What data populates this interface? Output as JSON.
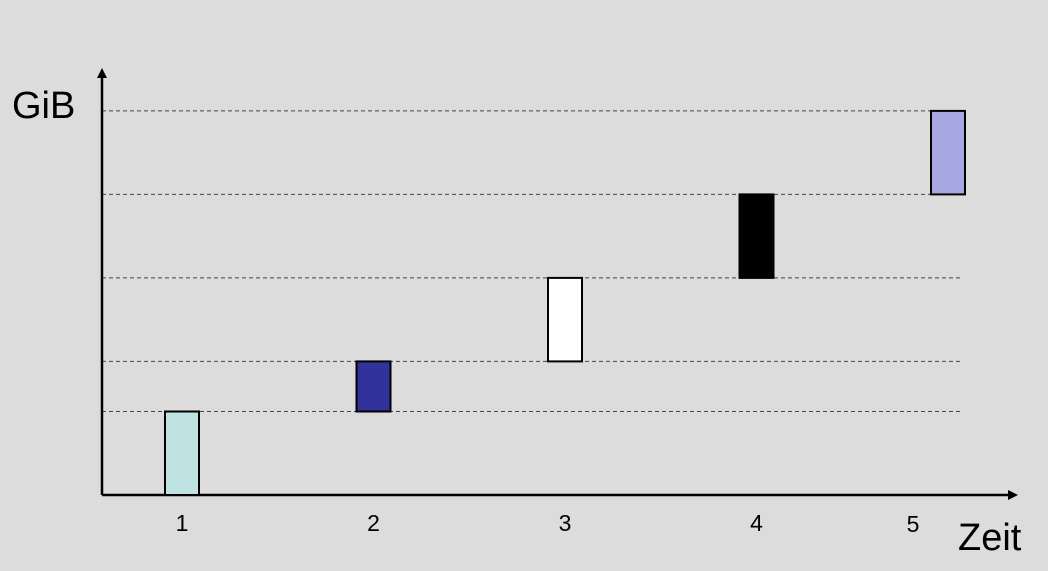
{
  "chart_data": {
    "type": "bar",
    "subtype": "floating",
    "xlabel": "Zeit",
    "ylabel": "GiB",
    "categories": [
      "1",
      "2",
      "3",
      "4",
      "5"
    ],
    "series": [
      {
        "values": [
          [
            0.0,
            1.0
          ],
          [
            1.0,
            1.6
          ],
          [
            1.6,
            2.6
          ],
          [
            2.6,
            3.6
          ],
          [
            3.6,
            4.6
          ]
        ],
        "colors": [
          "#bfe2e2",
          "#31339a",
          "#ffffff",
          "#000000",
          "#a7a7e2"
        ]
      }
    ],
    "ylim": [
      0,
      4.7
    ],
    "grid": {
      "axis": "y",
      "style": "dashed",
      "levels": [
        1.0,
        1.6,
        2.6,
        3.6,
        4.6
      ]
    },
    "axes": {
      "arrowheads": true
    }
  }
}
